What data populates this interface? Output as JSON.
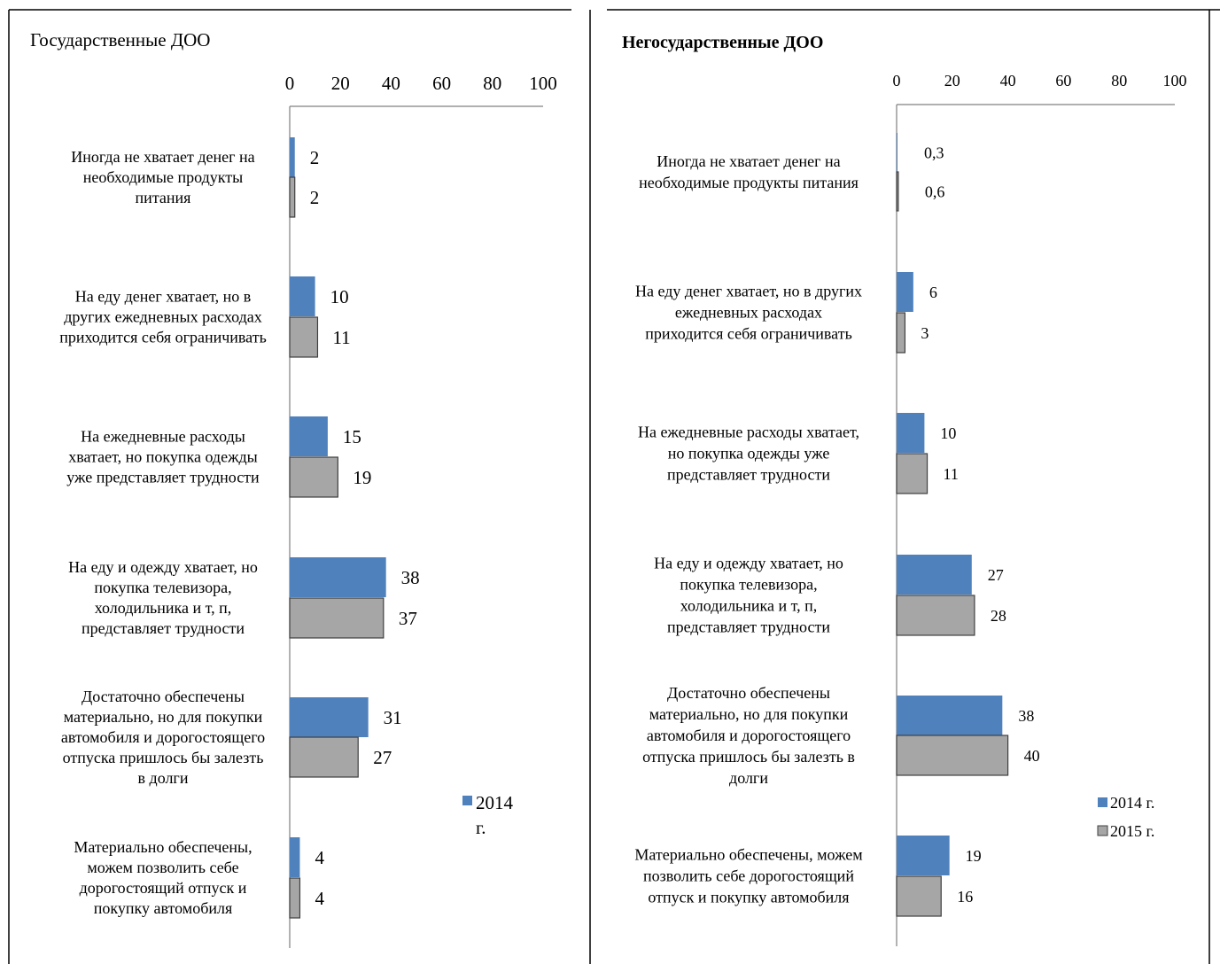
{
  "colors": {
    "series2014": "#4f81bd",
    "series2015": "#a6a6a6",
    "border2015": "#404040",
    "axis": "#808080"
  },
  "chart_data": [
    {
      "type": "bar",
      "orientation": "horizontal",
      "title": "Государственные ДОО",
      "xlim": [
        0,
        100
      ],
      "ticks": [
        "0",
        "20",
        "40",
        "60",
        "80",
        "100"
      ],
      "categories": [
        [
          "Иногда не хватает денег на",
          "необходимые продукты",
          "питания"
        ],
        [
          "На еду денег хватает, но в",
          "других ежедневных расходах",
          "приходится себя ограничивать"
        ],
        [
          "На ежедневные расходы",
          "хватает, но покупка одежды",
          "уже представляет трудности"
        ],
        [
          "На еду и одежду хватает, но",
          "покупка телевизора,",
          "холодильника и т, п,",
          "представляет трудности"
        ],
        [
          "Достаточно обеспечены",
          "материально, но для покупки",
          "автомобиля и дорогостоящего",
          "отпуска пришлось бы залезть",
          "в долги"
        ],
        [
          "Материально обеспечены,",
          "можем позволить себе",
          "дорогостоящий отпуск и",
          "покупку автомобиля"
        ]
      ],
      "series": [
        {
          "name": "2014 г.",
          "values": [
            2,
            10,
            15,
            38,
            31,
            4
          ],
          "labels": [
            "2",
            "10",
            "15",
            "38",
            "31",
            "4"
          ]
        },
        {
          "name": "",
          "values": [
            2,
            11,
            19,
            37,
            27,
            4
          ],
          "labels": [
            "2",
            "11",
            "19",
            "37",
            "27",
            "4"
          ]
        }
      ],
      "legend": {
        "position": "right",
        "entries": [
          "2014",
          "г."
        ]
      },
      "grid": false
    },
    {
      "type": "bar",
      "orientation": "horizontal",
      "title": "Негосударственные ДОО",
      "xlim": [
        0,
        100
      ],
      "ticks": [
        "0",
        "20",
        "40",
        "60",
        "80",
        "100"
      ],
      "categories": [
        [
          "Иногда не хватает денег на",
          "необходимые продукты питания"
        ],
        [
          "На еду денег хватает, но в других",
          "ежедневных расходах",
          "приходится себя ограничивать"
        ],
        [
          "На ежедневные расходы хватает,",
          "но покупка одежды уже",
          "представляет трудности"
        ],
        [
          "На еду и одежду хватает, но",
          "покупка телевизора,",
          "холодильника и т, п,",
          "представляет трудности"
        ],
        [
          "Достаточно обеспечены",
          "материально, но для покупки",
          "автомобиля и дорогостоящего",
          "отпуска пришлось бы залезть в",
          "долги"
        ],
        [
          "Материально обеспечены, можем",
          "позволить себе дорогостоящий",
          "отпуск и покупку автомобиля"
        ]
      ],
      "series": [
        {
          "name": "2014 г.",
          "values": [
            0.3,
            6,
            10,
            27,
            38,
            19
          ],
          "labels": [
            "0,3",
            "6",
            "10",
            "27",
            "38",
            "19"
          ]
        },
        {
          "name": "2015 г.",
          "values": [
            0.6,
            3,
            11,
            28,
            40,
            16
          ],
          "labels": [
            "0,6",
            "3",
            "11",
            "28",
            "40",
            "16"
          ]
        }
      ],
      "legend": {
        "position": "right",
        "entries": [
          "2014 г.",
          "2015 г."
        ]
      },
      "grid": false
    }
  ]
}
